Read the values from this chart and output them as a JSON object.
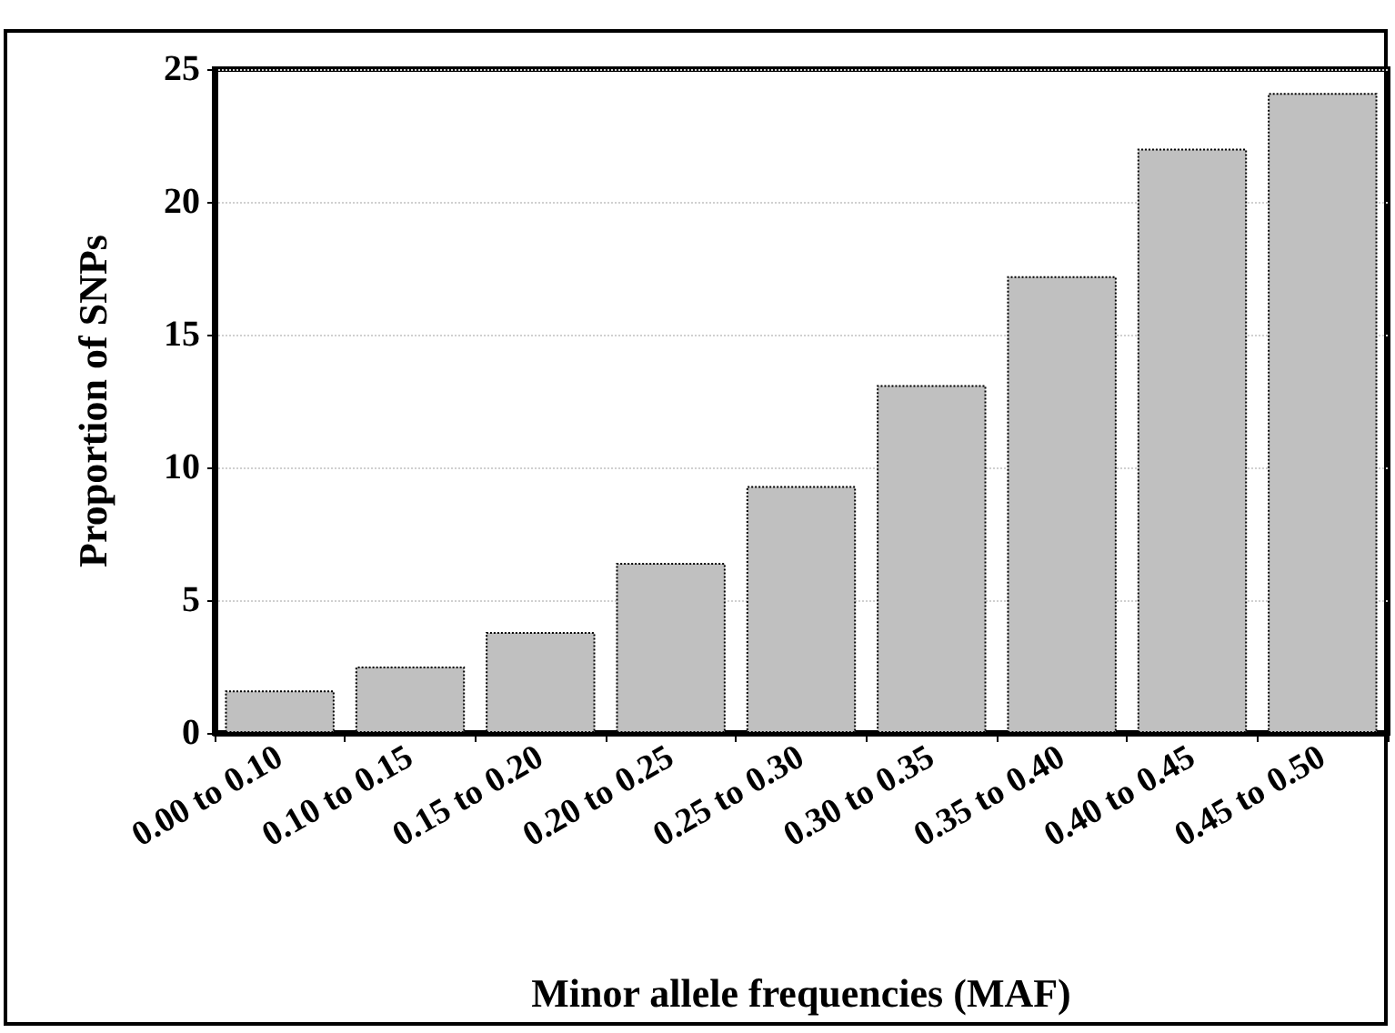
{
  "chart_data": {
    "type": "bar",
    "xlabel": "Minor allele frequencies (MAF)",
    "ylabel": "Proportion of SNPs",
    "categories": [
      "0.00 to 0.10",
      "0.10 to 0.15",
      "0.15 to 0.20",
      "0.20 to 0.25",
      "0.25 to 0.30",
      "0.30 to 0.35",
      "0.35 to 0.40",
      "0.40 to 0.45",
      "0.45 to 0.50"
    ],
    "values": [
      1.6,
      2.5,
      3.8,
      6.4,
      9.3,
      13.1,
      17.2,
      22.0,
      24.1
    ],
    "color": "#c0c0c0",
    "ylim": [
      0,
      25
    ],
    "yticks": [
      0,
      5,
      10,
      15,
      20,
      25
    ],
    "grid": "y"
  }
}
